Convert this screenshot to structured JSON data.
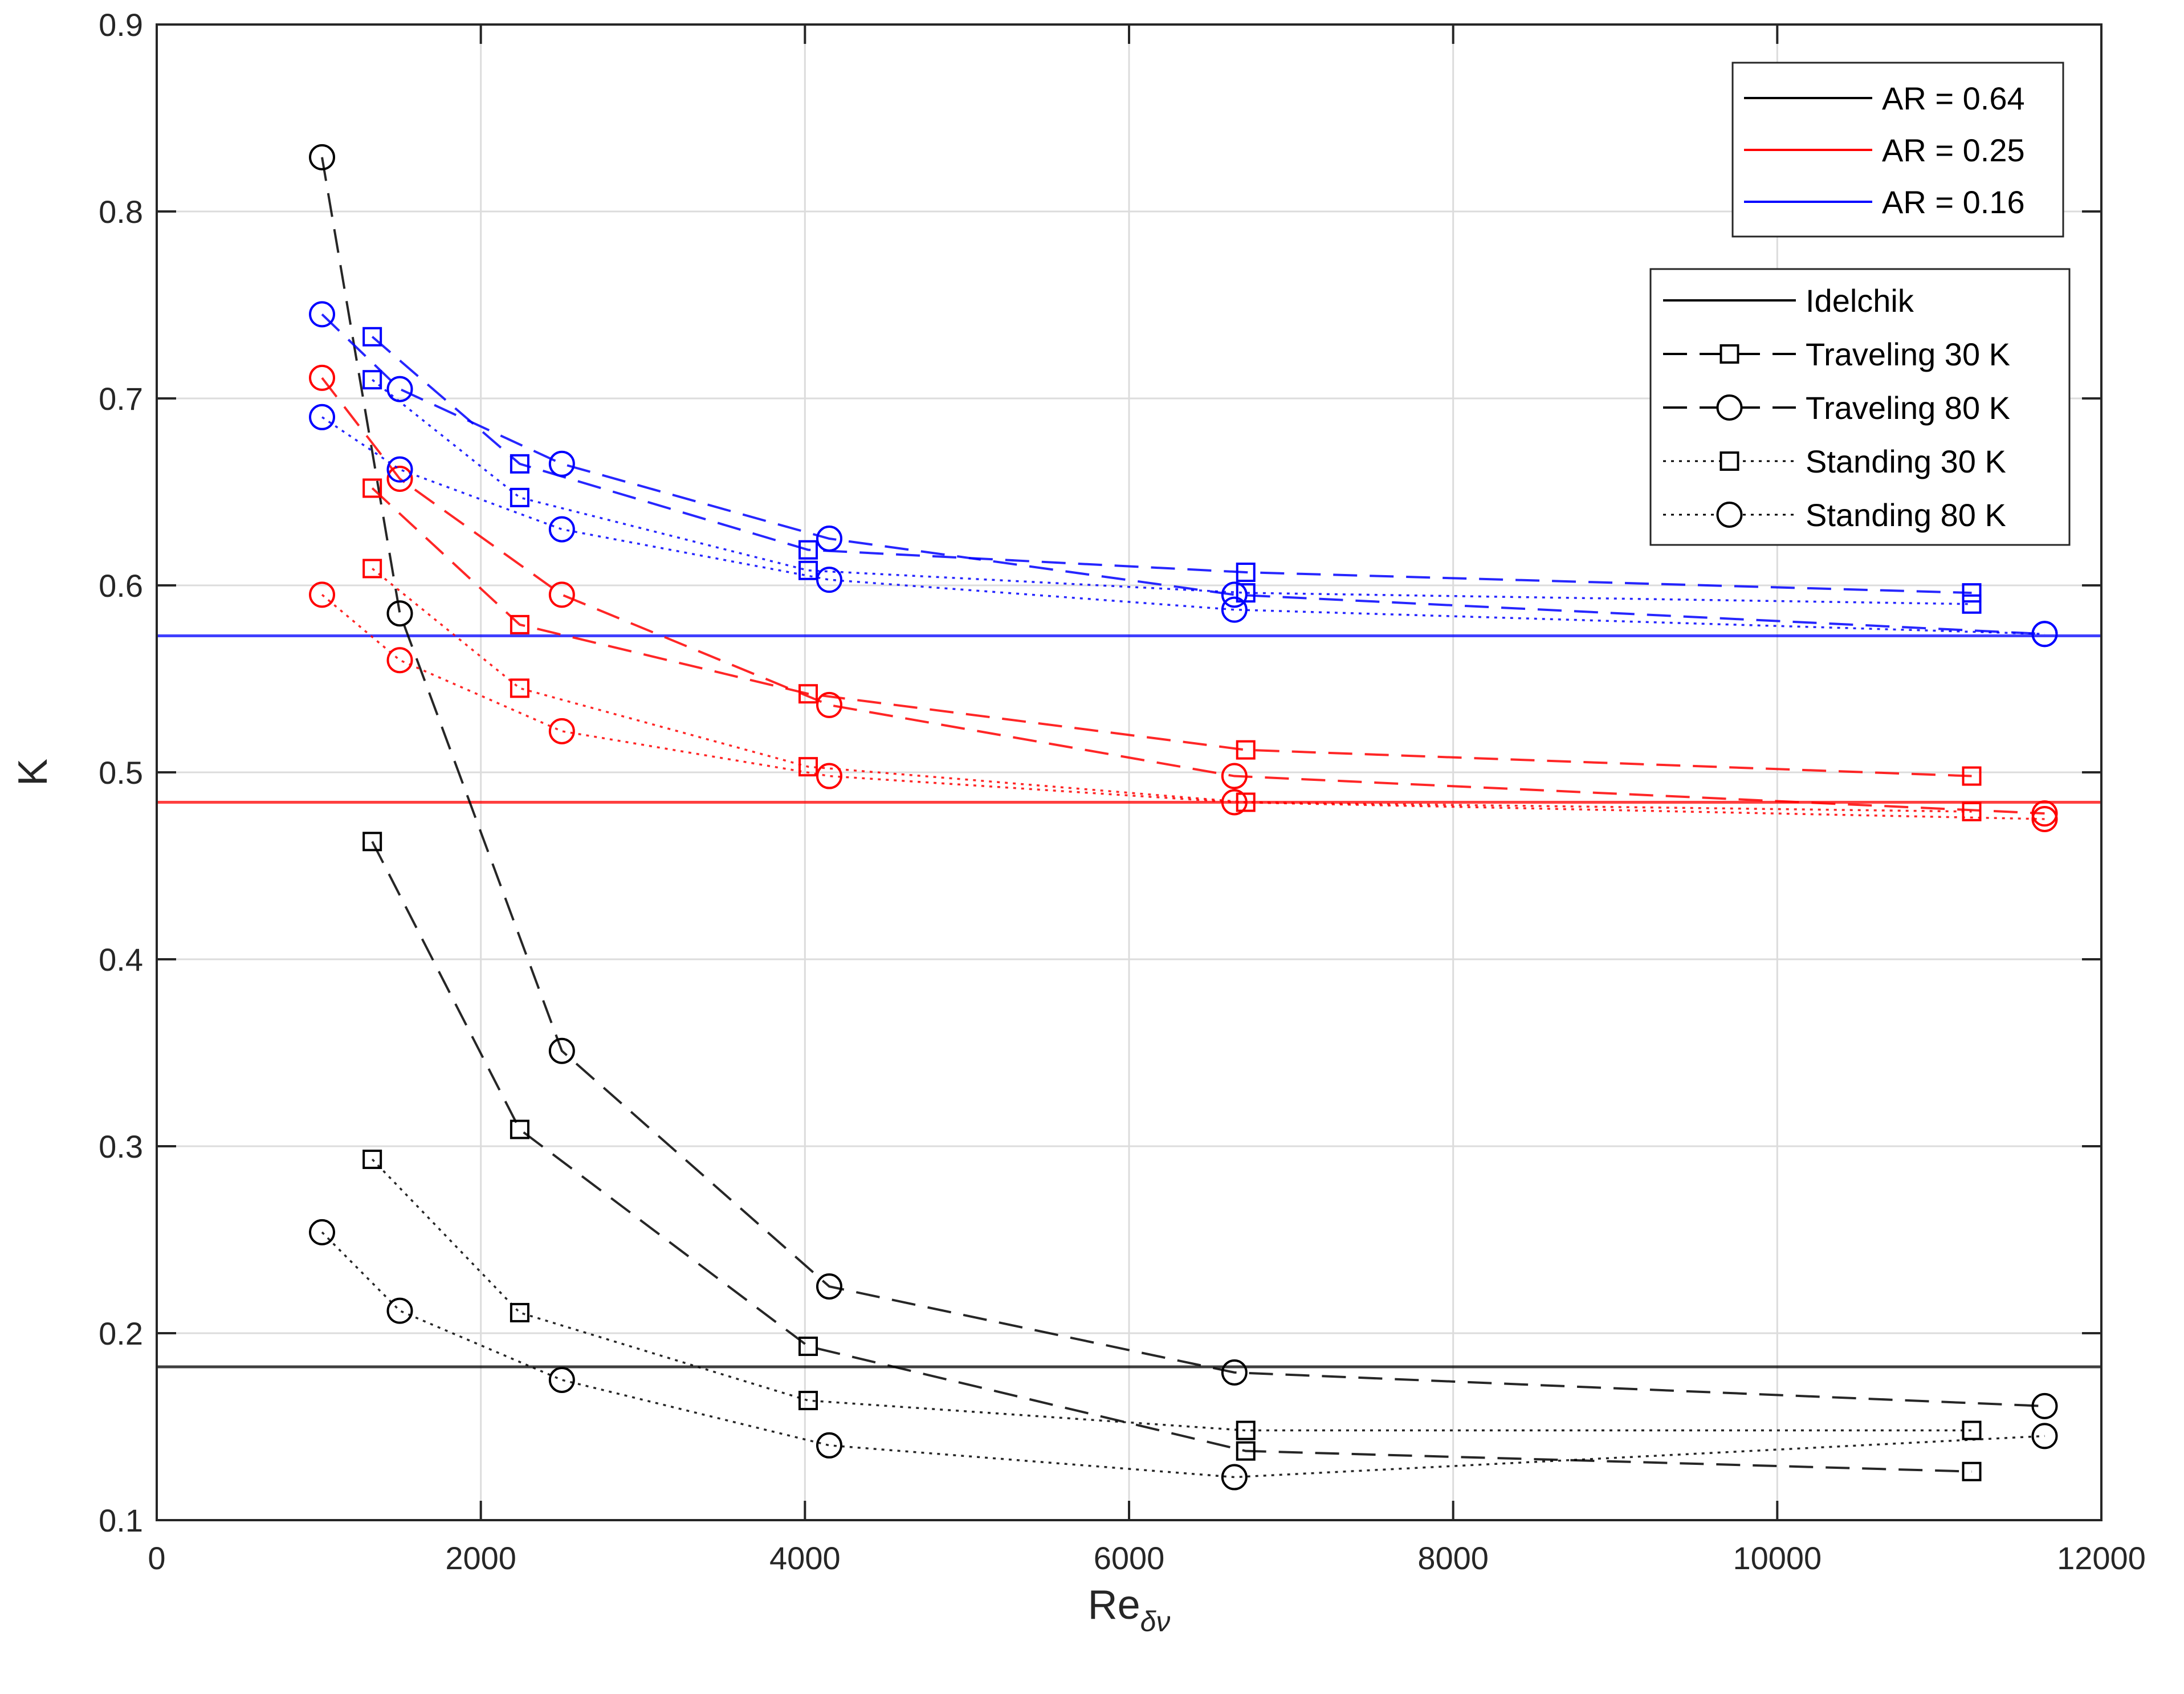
{
  "chart_data": {
    "type": "line",
    "title": "",
    "xlabel": "Re",
    "xlabel_subscript": "δν",
    "ylabel": "K",
    "xlim": [
      0,
      12000
    ],
    "ylim": [
      0.1,
      0.9
    ],
    "xticks": [
      0,
      2000,
      4000,
      6000,
      8000,
      10000,
      12000
    ],
    "xtick_labels": [
      "0",
      "2000",
      "4000",
      "6000",
      "8000",
      "10000",
      "12000"
    ],
    "yticks": [
      0.1,
      0.2,
      0.3,
      0.4,
      0.5,
      0.6,
      0.7,
      0.8,
      0.9
    ],
    "ytick_labels": [
      "0.1",
      "0.2",
      "0.3",
      "0.4",
      "0.5",
      "0.6",
      "0.7",
      "0.8",
      "0.9"
    ],
    "grid": true,
    "colors": {
      "AR = 0.64": "#000000",
      "AR = 0.25": "#ff0000",
      "AR = 0.16": "#0000ff"
    },
    "legend_color": {
      "position": "top-right",
      "entries": [
        {
          "label": "AR = 0.64",
          "color": "#000000"
        },
        {
          "label": "AR = 0.25",
          "color": "#ff0000"
        },
        {
          "label": "AR = 0.16",
          "color": "#0000ff"
        }
      ]
    },
    "legend_style": {
      "position": "top-right",
      "entries": [
        {
          "label": "Idelchik",
          "line": "solid",
          "marker": "none"
        },
        {
          "label": "Traveling 30 K",
          "line": "dashed",
          "marker": "square"
        },
        {
          "label": "Traveling 80 K",
          "line": "dashed",
          "marker": "circle"
        },
        {
          "label": "Standing 30 K",
          "line": "dotted",
          "marker": "square"
        },
        {
          "label": "Standing 80 K",
          "line": "dotted",
          "marker": "circle"
        }
      ]
    },
    "idelchik": [
      {
        "ar": "AR = 0.64",
        "value": 0.182,
        "color": "#000000"
      },
      {
        "ar": "AR = 0.25",
        "value": 0.484,
        "color": "#ff0000"
      },
      {
        "ar": "AR = 0.16",
        "value": 0.573,
        "color": "#0000ff"
      }
    ],
    "series": [
      {
        "name": "Traveling 30 K",
        "ar": "AR = 0.64",
        "color": "#000000",
        "line": "dashed",
        "marker": "square",
        "x": [
          1330,
          2240,
          4020,
          6720,
          11200
        ],
        "y": [
          0.463,
          0.309,
          0.193,
          0.137,
          0.126
        ]
      },
      {
        "name": "Traveling 80 K",
        "ar": "AR = 0.64",
        "color": "#000000",
        "line": "dashed",
        "marker": "circle",
        "x": [
          1020,
          1500,
          2500,
          4150,
          6650,
          11650
        ],
        "y": [
          0.829,
          0.585,
          0.351,
          0.225,
          0.179,
          0.161
        ]
      },
      {
        "name": "Standing 30 K",
        "ar": "AR = 0.64",
        "color": "#000000",
        "line": "dotted",
        "marker": "square",
        "x": [
          1330,
          2240,
          4020,
          6720,
          11200
        ],
        "y": [
          0.293,
          0.211,
          0.164,
          0.148,
          0.148
        ]
      },
      {
        "name": "Standing 80 K",
        "ar": "AR = 0.64",
        "color": "#000000",
        "line": "dotted",
        "marker": "circle",
        "x": [
          1020,
          1500,
          2500,
          4150,
          6650,
          11650
        ],
        "y": [
          0.254,
          0.212,
          0.175,
          0.14,
          0.123,
          0.145
        ]
      },
      {
        "name": "Traveling 30 K",
        "ar": "AR = 0.25",
        "color": "#ff0000",
        "line": "dashed",
        "marker": "square",
        "x": [
          1330,
          2240,
          4020,
          6720,
          11200
        ],
        "y": [
          0.652,
          0.579,
          0.542,
          0.512,
          0.498
        ]
      },
      {
        "name": "Traveling 80 K",
        "ar": "AR = 0.25",
        "color": "#ff0000",
        "line": "dashed",
        "marker": "circle",
        "x": [
          1020,
          1500,
          2500,
          4150,
          6650,
          11650
        ],
        "y": [
          0.711,
          0.657,
          0.595,
          0.536,
          0.498,
          0.478
        ]
      },
      {
        "name": "Standing 30 K",
        "ar": "AR = 0.25",
        "color": "#ff0000",
        "line": "dotted",
        "marker": "square",
        "x": [
          1330,
          2240,
          4020,
          6720,
          11200
        ],
        "y": [
          0.609,
          0.545,
          0.503,
          0.484,
          0.479
        ]
      },
      {
        "name": "Standing 80 K",
        "ar": "AR = 0.25",
        "color": "#ff0000",
        "line": "dotted",
        "marker": "circle",
        "x": [
          1020,
          1500,
          2500,
          4150,
          6650,
          11650
        ],
        "y": [
          0.595,
          0.56,
          0.522,
          0.498,
          0.484,
          0.475
        ]
      },
      {
        "name": "Traveling 30 K",
        "ar": "AR = 0.16",
        "color": "#0000ff",
        "line": "dashed",
        "marker": "square",
        "x": [
          1330,
          2240,
          4020,
          6720,
          11200
        ],
        "y": [
          0.733,
          0.665,
          0.619,
          0.607,
          0.596
        ]
      },
      {
        "name": "Traveling 80 K",
        "ar": "AR = 0.16",
        "color": "#0000ff",
        "line": "dashed",
        "marker": "circle",
        "x": [
          1020,
          1500,
          2500,
          4150,
          6650,
          11650
        ],
        "y": [
          0.745,
          0.705,
          0.665,
          0.625,
          0.595,
          0.574
        ]
      },
      {
        "name": "Standing 30 K",
        "ar": "AR = 0.16",
        "color": "#0000ff",
        "line": "dotted",
        "marker": "square",
        "x": [
          1330,
          2240,
          4020,
          6720,
          11200
        ],
        "y": [
          0.71,
          0.647,
          0.608,
          0.596,
          0.59
        ]
      },
      {
        "name": "Standing 80 K",
        "ar": "AR = 0.16",
        "color": "#0000ff",
        "line": "dotted",
        "marker": "circle",
        "x": [
          1020,
          1500,
          2500,
          4150,
          6650,
          11650
        ],
        "y": [
          0.69,
          0.662,
          0.63,
          0.603,
          0.587,
          0.574
        ]
      }
    ]
  }
}
